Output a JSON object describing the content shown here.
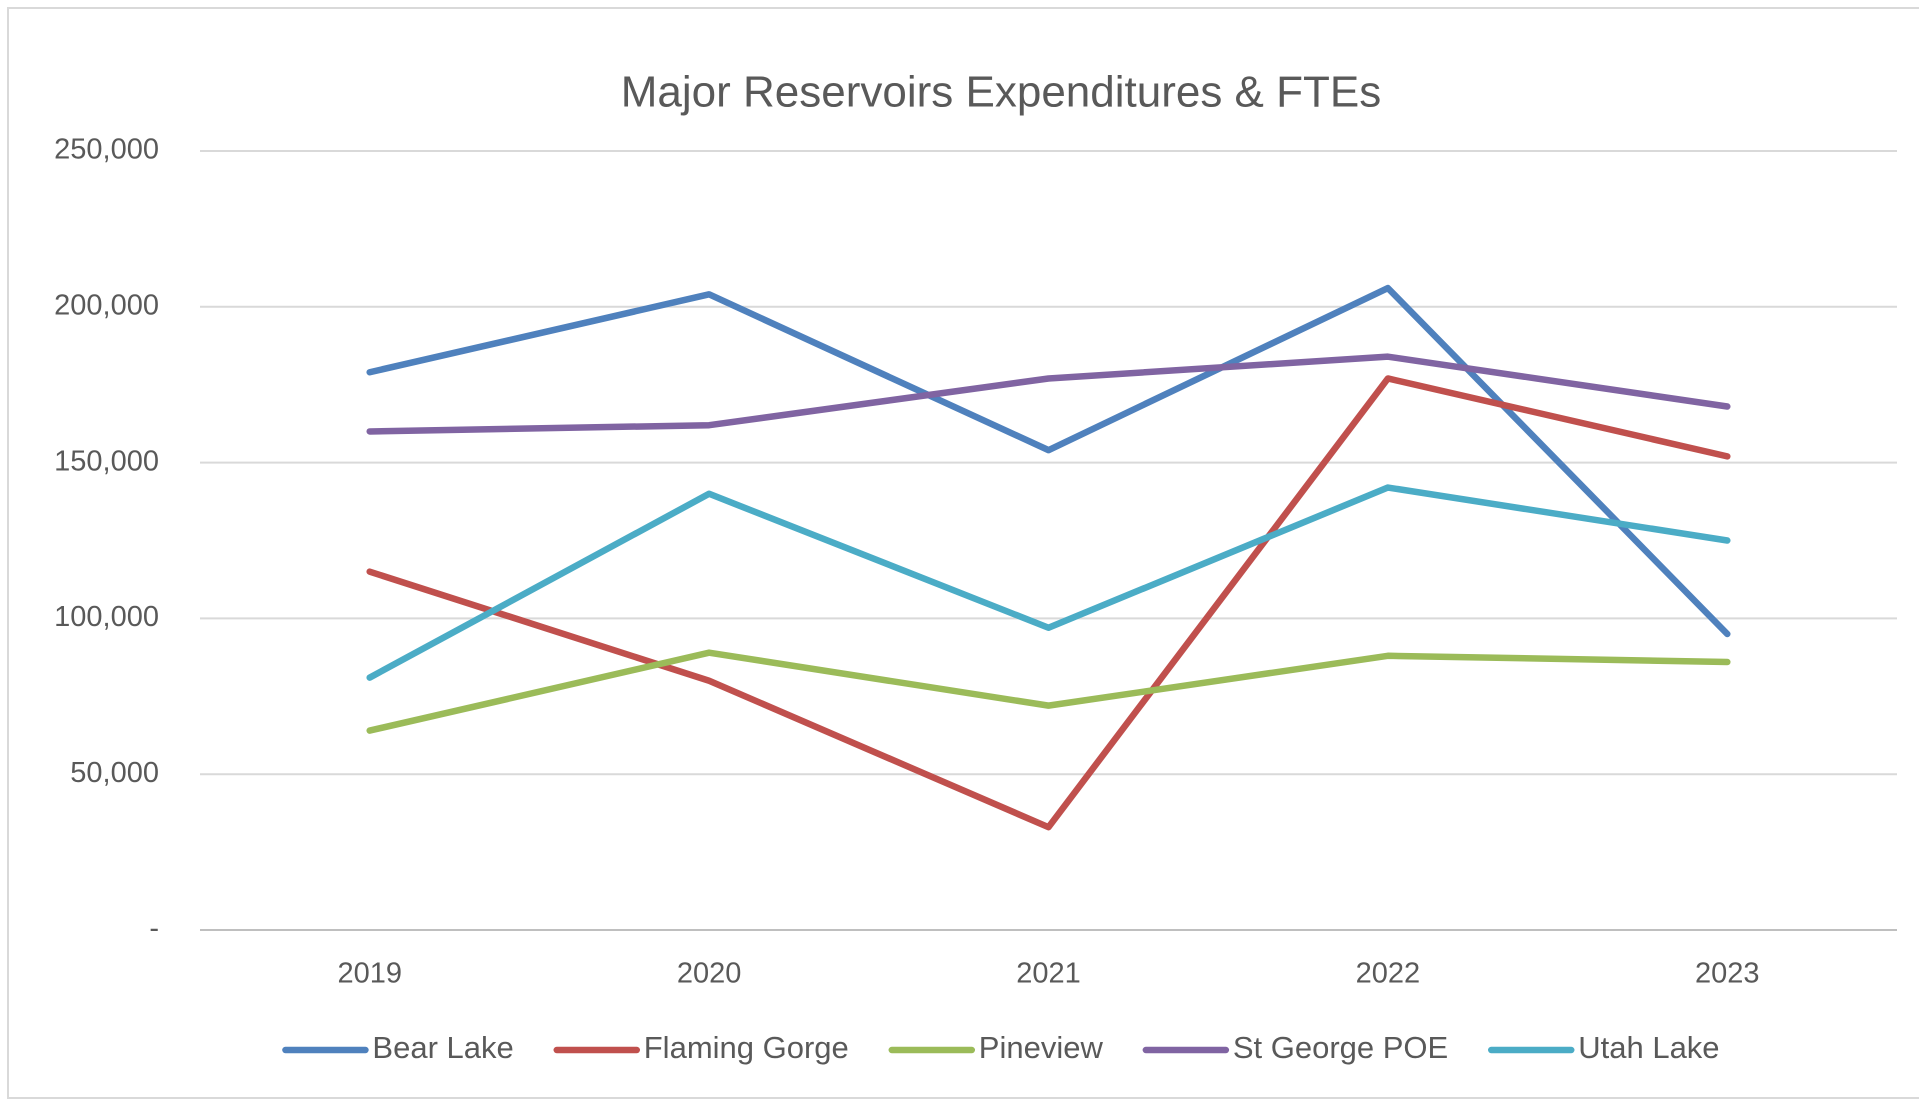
{
  "chart_data": {
    "type": "line",
    "title": "Major Reservoirs Expenditures & FTEs",
    "categories": [
      "2019",
      "2020",
      "2021",
      "2022",
      "2023"
    ],
    "series": [
      {
        "name": "Bear Lake",
        "color": "#4f81bd",
        "values": [
          179000,
          204000,
          154000,
          206000,
          95000
        ]
      },
      {
        "name": "Flaming Gorge",
        "color": "#c0504d",
        "values": [
          115000,
          80000,
          33000,
          177000,
          152000
        ]
      },
      {
        "name": "Pineview",
        "color": "#9bbb59",
        "values": [
          64000,
          89000,
          72000,
          88000,
          86000
        ]
      },
      {
        "name": "St George POE",
        "color": "#8064a2",
        "values": [
          160000,
          162000,
          177000,
          184000,
          168000
        ]
      },
      {
        "name": "Utah Lake",
        "color": "#4bacc6",
        "values": [
          81000,
          140000,
          97000,
          142000,
          125000
        ]
      }
    ],
    "ylim": [
      0,
      250000
    ],
    "yticks": [
      {
        "value": 0,
        "label": "-"
      },
      {
        "value": 50000,
        "label": "50,000"
      },
      {
        "value": 100000,
        "label": "100,000"
      },
      {
        "value": 150000,
        "label": "150,000"
      },
      {
        "value": 200000,
        "label": "200,000"
      },
      {
        "value": 250000,
        "label": "250,000"
      }
    ],
    "grid": true,
    "legend": "bottom"
  }
}
